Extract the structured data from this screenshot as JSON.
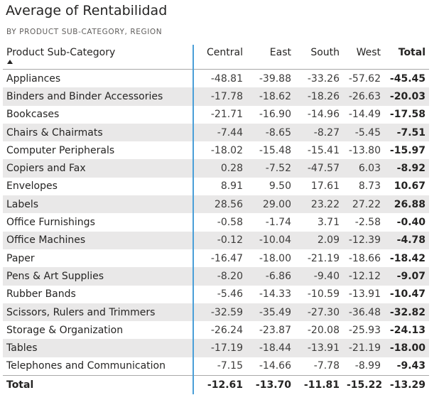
{
  "visual": {
    "title": "Average of Rentabilidad",
    "subtitle": "BY PRODUCT SUB-CATEGORY, REGION"
  },
  "table": {
    "headers": {
      "row_header": "Product Sub-Category",
      "sort_icon": "sort-ascending-icon",
      "columns": [
        "Central",
        "East",
        "South",
        "West"
      ],
      "total": "Total"
    },
    "rows": [
      {
        "label": "Appliances",
        "values": [
          "-48.81",
          "-39.88",
          "-33.26",
          "-57.62"
        ],
        "total": "-45.45"
      },
      {
        "label": "Binders and Binder Accessories",
        "values": [
          "-17.78",
          "-18.62",
          "-18.26",
          "-26.63"
        ],
        "total": "-20.03"
      },
      {
        "label": "Bookcases",
        "values": [
          "-21.71",
          "-16.90",
          "-14.96",
          "-14.49"
        ],
        "total": "-17.58"
      },
      {
        "label": "Chairs & Chairmats",
        "values": [
          "-7.44",
          "-8.65",
          "-8.27",
          "-5.45"
        ],
        "total": "-7.51"
      },
      {
        "label": "Computer Peripherals",
        "values": [
          "-18.02",
          "-15.48",
          "-15.41",
          "-13.80"
        ],
        "total": "-15.97"
      },
      {
        "label": "Copiers and Fax",
        "values": [
          "0.28",
          "-7.52",
          "-47.57",
          "6.03"
        ],
        "total": "-8.92"
      },
      {
        "label": "Envelopes",
        "values": [
          "8.91",
          "9.50",
          "17.61",
          "8.73"
        ],
        "total": "10.67"
      },
      {
        "label": "Labels",
        "values": [
          "28.56",
          "29.00",
          "23.22",
          "27.22"
        ],
        "total": "26.88"
      },
      {
        "label": "Office Furnishings",
        "values": [
          "-0.58",
          "-1.74",
          "3.71",
          "-2.58"
        ],
        "total": "-0.40"
      },
      {
        "label": "Office Machines",
        "values": [
          "-0.12",
          "-10.04",
          "2.09",
          "-12.39"
        ],
        "total": "-4.78"
      },
      {
        "label": "Paper",
        "values": [
          "-16.47",
          "-18.00",
          "-21.19",
          "-18.66"
        ],
        "total": "-18.42"
      },
      {
        "label": "Pens & Art Supplies",
        "values": [
          "-8.20",
          "-6.86",
          "-9.40",
          "-12.12"
        ],
        "total": "-9.07"
      },
      {
        "label": "Rubber Bands",
        "values": [
          "-5.46",
          "-14.33",
          "-10.59",
          "-13.91"
        ],
        "total": "-10.47"
      },
      {
        "label": "Scissors, Rulers and Trimmers",
        "values": [
          "-32.59",
          "-35.49",
          "-27.30",
          "-36.48"
        ],
        "total": "-32.82"
      },
      {
        "label": "Storage & Organization",
        "values": [
          "-26.24",
          "-23.87",
          "-20.08",
          "-25.93"
        ],
        "total": "-24.13"
      },
      {
        "label": "Tables",
        "values": [
          "-17.19",
          "-18.44",
          "-13.91",
          "-21.19"
        ],
        "total": "-18.00"
      },
      {
        "label": "Telephones and Communication",
        "values": [
          "-7.15",
          "-14.66",
          "-7.78",
          "-8.99"
        ],
        "total": "-9.43"
      }
    ],
    "grand_total": {
      "label": "Total",
      "values": [
        "-12.61",
        "-13.70",
        "-11.81",
        "-15.22"
      ],
      "total": "-13.29"
    }
  },
  "colors": {
    "column_divider": "#4a9fd8",
    "stripe": "#e9e8e8"
  }
}
